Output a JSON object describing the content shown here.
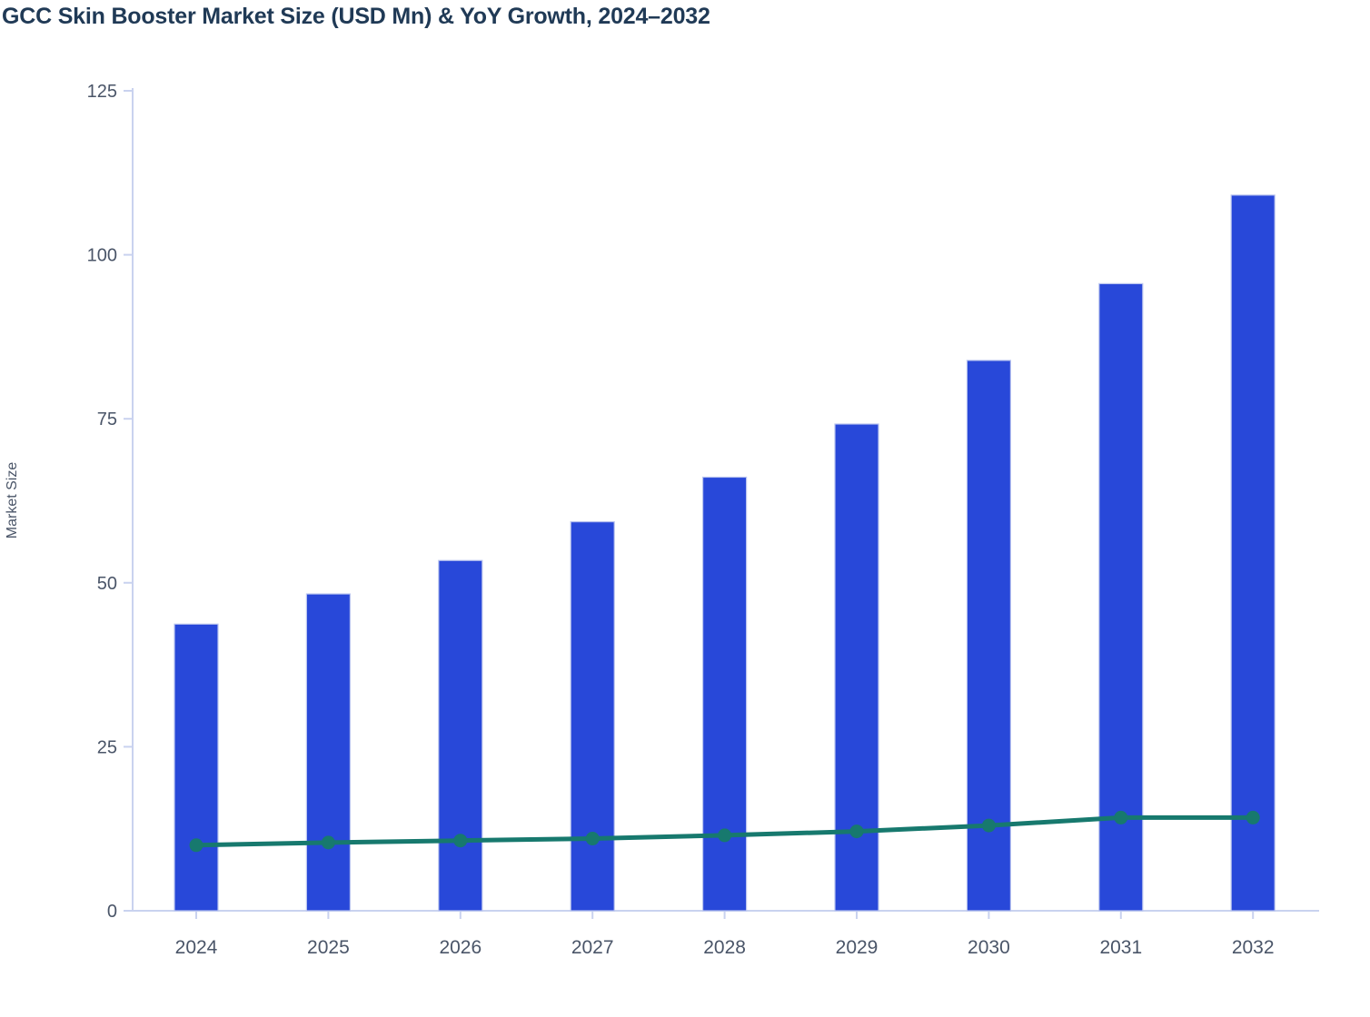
{
  "title": "GCC Skin Booster Market Size (USD Mn) & YoY Growth, 2024–2032",
  "colors": {
    "background": "#ffffff",
    "bar": "#2848d9",
    "bar_stroke": "#b9c4ef",
    "line": "#17796e",
    "title_text": "#203a56",
    "tick_text": "#4a5568",
    "axis_line": "#c9d2ef"
  },
  "chart_data": {
    "type": "bar",
    "title": "GCC Skin Booster Market Size (USD Mn) & YoY Growth, 2024–2032",
    "categories": [
      "2024",
      "2025",
      "2026",
      "2027",
      "2028",
      "2029",
      "2030",
      "2031",
      "2032"
    ],
    "series": [
      {
        "name": "Market Size (USD Mn)",
        "type": "bar",
        "color": "#2848d9",
        "values": [
          43.7,
          48.3,
          53.4,
          59.3,
          66.1,
          74.2,
          83.9,
          95.6,
          109.1
        ]
      },
      {
        "name": "YoY Growth (%)",
        "type": "line",
        "color": "#17796e",
        "values": [
          10.0,
          10.4,
          10.7,
          11.0,
          11.5,
          12.1,
          13.0,
          14.2,
          14.2
        ]
      }
    ],
    "xlabel": "",
    "ylabel": "Market Size",
    "ylim": [
      0,
      125
    ],
    "yticks": [
      0,
      25,
      50,
      75,
      100,
      125
    ],
    "grid": false,
    "legend_position": "none"
  }
}
